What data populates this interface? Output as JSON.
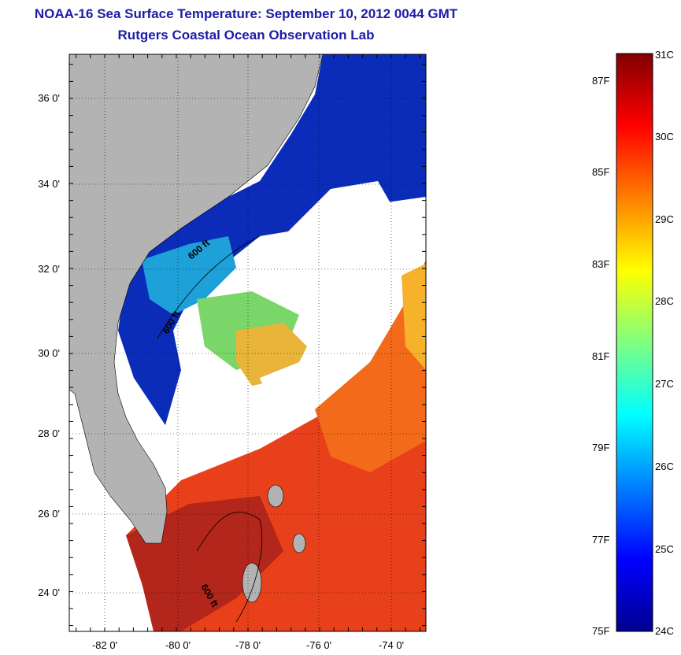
{
  "title": {
    "line1": "NOAA-16 Sea Surface Temperature:  September 10, 2012 0044 GMT",
    "line2": "Rutgers Coastal Ocean Observation Lab"
  },
  "map": {
    "lat_labels": [
      "36 0'",
      "34 0'",
      "32 0'",
      "30 0'",
      "28 0'",
      "26 0'",
      "24 0'"
    ],
    "lon_labels": [
      "-82 0'",
      "-80 0'",
      "-78 0'",
      "-76 0'",
      "-74 0'"
    ],
    "contour_labels": [
      "600 ft",
      "600 ft",
      "600 ft"
    ],
    "colors": {
      "land": "#b3b3b3",
      "cloud": "#ffffff",
      "cold": "#0a2cb8",
      "warm": "#e8401a",
      "hot": "#a81a12"
    }
  },
  "colorbar": {
    "celsius_labels": [
      "31C",
      "30C",
      "29C",
      "28C",
      "27C",
      "26C",
      "25C",
      "24C"
    ],
    "fahrenheit_labels": [
      "87F",
      "85F",
      "83F",
      "81F",
      "79F",
      "77F",
      "75F"
    ],
    "range_celsius": [
      24,
      31
    ],
    "colormap": "jet"
  }
}
